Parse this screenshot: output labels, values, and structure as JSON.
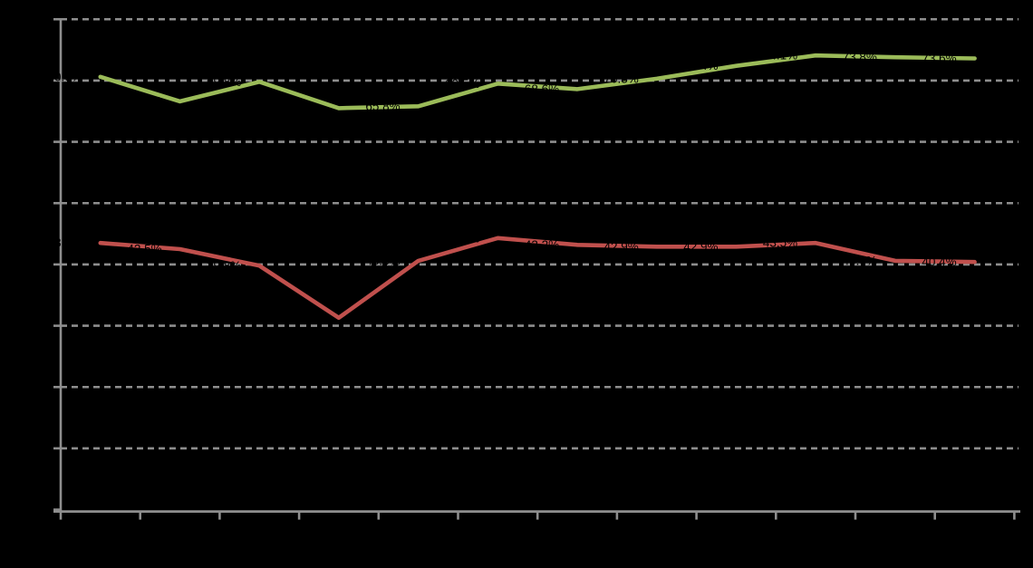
{
  "chart_data": {
    "type": "line",
    "title": "",
    "num_points": 12,
    "x_labels_visible": false,
    "background_color": "#000000",
    "plot_area_fill": "none",
    "grid": "horizontal-dashed",
    "gridline_color": "#8E8E8E",
    "axis_color": "#8E8E8E",
    "label_text_color": "#000000",
    "ylim": [
      0,
      80
    ],
    "y_step": 10,
    "y_format": "percent",
    "legend_position": "none-visible",
    "series": [
      {
        "name": "green-line",
        "color": "#9BBB59",
        "values": [
          70.6,
          66.6,
          69.8,
          65.5,
          65.8,
          69.5,
          68.6,
          70.3,
          72.4,
          74.1,
          73.8,
          73.6
        ],
        "data_labels": [
          "70.6%",
          "66.6%",
          "69.8%",
          "65.5%",
          "65.8%",
          "69.5%",
          "68.6%",
          "70.3%",
          "72.4%",
          "74.1%",
          "73.8%",
          "73.6%"
        ]
      },
      {
        "name": "red-line",
        "color": "#C0504D",
        "values": [
          43.5,
          42.5,
          39.8,
          31.3,
          40.6,
          44.3,
          43.2,
          42.9,
          42.9,
          43.5,
          40.6,
          40.4
        ],
        "data_labels": [
          "43.5%",
          "42.5%",
          "39.8%",
          "31.3%",
          "40.6%",
          "44.3%",
          "43.2%",
          "42.9%",
          "42.9%",
          "43.5%",
          "40.6%",
          "40.4%"
        ]
      }
    ],
    "visible_label_fragments": [
      "72.4%",
      "74.1%",
      "73.8%",
      "73.6%",
      "40.4%"
    ]
  }
}
